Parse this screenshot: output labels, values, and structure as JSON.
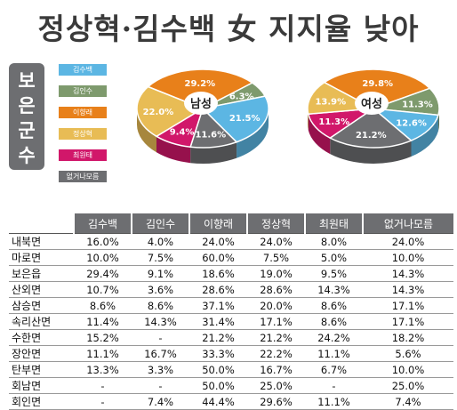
{
  "title": "정상혁·김수백 女 지지율 낮아",
  "region": "보은군수",
  "legend": [
    {
      "name": "김수백",
      "color": "#5cb6e3"
    },
    {
      "name": "김인수",
      "color": "#7e9a6d"
    },
    {
      "name": "이향래",
      "color": "#e8801a"
    },
    {
      "name": "정상혁",
      "color": "#e8bc55"
    },
    {
      "name": "최원태",
      "color": "#d1176a"
    },
    {
      "name": "없거나모름",
      "color": "#6d6e71"
    }
  ],
  "chart_data": [
    {
      "type": "pie",
      "title": "남성",
      "labels": [
        "김수백",
        "김인수",
        "이향래",
        "정상혁",
        "최원태",
        "없거나모름"
      ],
      "values": [
        21.5,
        6.3,
        29.2,
        22.0,
        9.4,
        11.6
      ],
      "value_labels": [
        "21.5%",
        "6.3%",
        "29.2%",
        "22.0%",
        "9.4%",
        "11.6%"
      ]
    },
    {
      "type": "pie",
      "title": "여성",
      "labels": [
        "김수백",
        "김인수",
        "이향래",
        "정상혁",
        "최원태",
        "없거나모름"
      ],
      "values": [
        12.6,
        11.3,
        29.8,
        13.9,
        11.3,
        21.2
      ],
      "value_labels": [
        "12.6%",
        "11.3%",
        "29.8%",
        "13.9%",
        "11.3%",
        "21.2%"
      ]
    },
    {
      "type": "table",
      "columns": [
        "김수백",
        "김인수",
        "이향래",
        "정상혁",
        "최원태",
        "없거나모름"
      ],
      "rows": [
        {
          "name": "내북면",
          "values": [
            "16.0%",
            "4.0%",
            "24.0%",
            "24.0%",
            "8.0%",
            "24.0%"
          ]
        },
        {
          "name": "마로면",
          "values": [
            "10.0%",
            "7.5%",
            "60.0%",
            "7.5%",
            "5.0%",
            "10.0%"
          ]
        },
        {
          "name": "보은읍",
          "values": [
            "29.4%",
            "9.1%",
            "18.6%",
            "19.0%",
            "9.5%",
            "14.3%"
          ]
        },
        {
          "name": "산외면",
          "values": [
            "10.7%",
            "3.6%",
            "28.6%",
            "28.6%",
            "14.3%",
            "14.3%"
          ]
        },
        {
          "name": "삼승면",
          "values": [
            "8.6%",
            "8.6%",
            "37.1%",
            "20.0%",
            "8.6%",
            "17.1%"
          ]
        },
        {
          "name": "속리산면",
          "values": [
            "11.4%",
            "14.3%",
            "31.4%",
            "17.1%",
            "8.6%",
            "17.1%"
          ]
        },
        {
          "name": "수한면",
          "values": [
            "15.2%",
            "-",
            "21.2%",
            "21.2%",
            "24.2%",
            "18.2%"
          ]
        },
        {
          "name": "장안면",
          "values": [
            "11.1%",
            "16.7%",
            "33.3%",
            "22.2%",
            "11.1%",
            "5.6%"
          ]
        },
        {
          "name": "탄부면",
          "values": [
            "13.3%",
            "3.3%",
            "50.0%",
            "16.7%",
            "6.7%",
            "10.0%"
          ]
        },
        {
          "name": "회남면",
          "values": [
            "-",
            "-",
            "50.0%",
            "25.0%",
            "-",
            "25.0%"
          ]
        },
        {
          "name": "회인면",
          "values": [
            "-",
            "7.4%",
            "44.4%",
            "29.6%",
            "11.1%",
            "7.4%"
          ]
        }
      ]
    }
  ]
}
